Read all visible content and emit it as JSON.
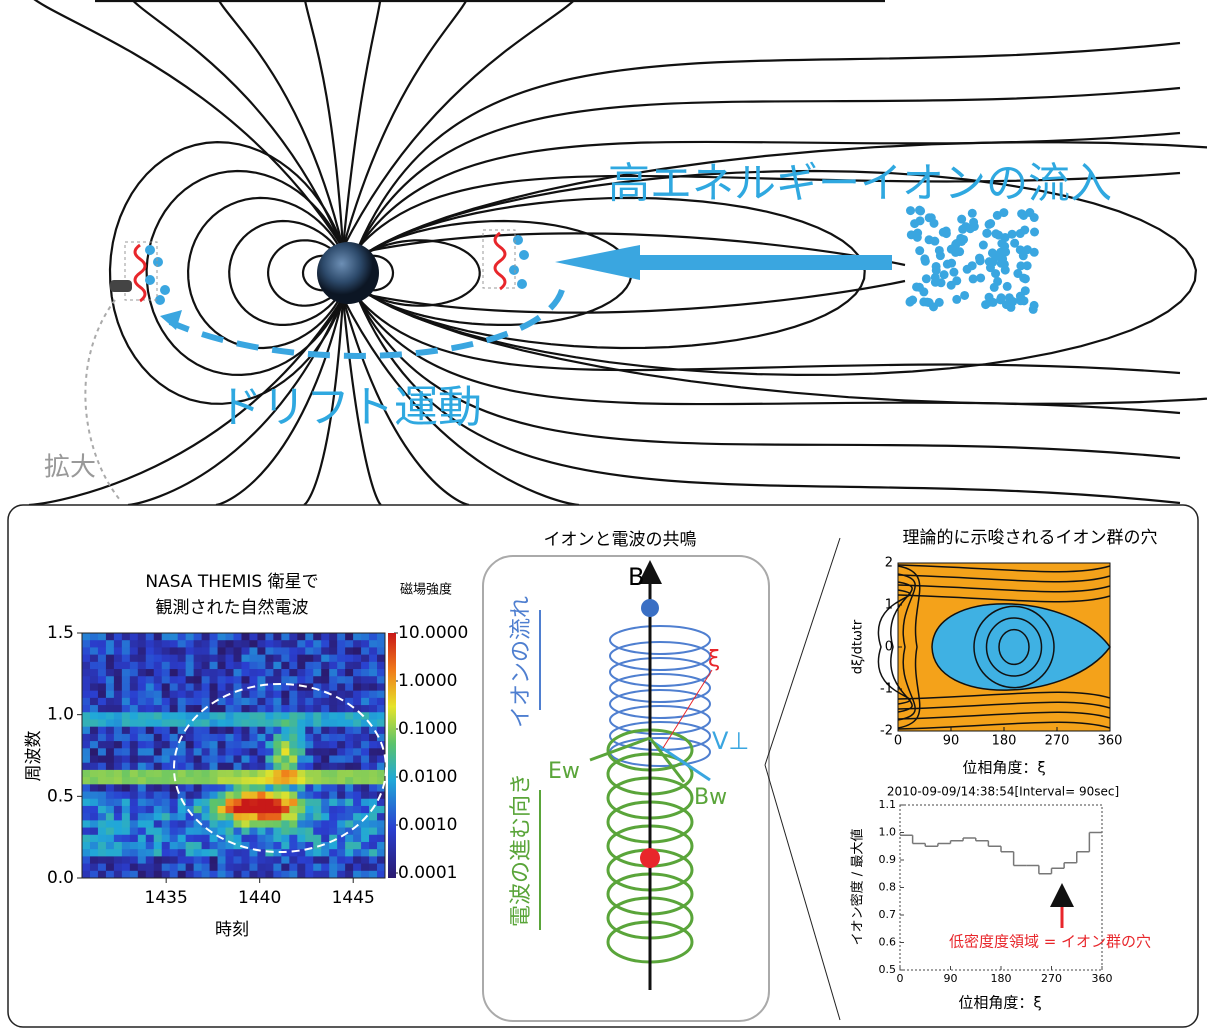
{
  "magnetosphere": {
    "inflow_label": "高エネルギーイオンの流入",
    "drift_label": "ドリフト運動",
    "zoom_label": "拡大"
  },
  "spectrogram": {
    "title_lines": [
      "NASA THEMIS 衛星で",
      "観測された自然電波"
    ],
    "x_label": "時刻",
    "y_label": "周波数",
    "xlim": [
      1430.5,
      1446.7
    ],
    "xticks": [
      1435,
      1440,
      1445
    ],
    "ylim": [
      0,
      1.5
    ],
    "yticks": [
      {
        "value": 0,
        "label": "0.0"
      },
      {
        "value": 0.5,
        "label": "0.5"
      },
      {
        "value": 1,
        "label": "1.0"
      },
      {
        "value": 1.5,
        "label": "1.5"
      }
    ],
    "colorbar_title": "磁場強度",
    "colorbar_log": true,
    "colorbar_lim": [
      0.0001,
      10
    ],
    "colorbar_ticks": [
      {
        "value": 10,
        "label": "10.0000"
      },
      {
        "value": 1,
        "label": "1.0000"
      },
      {
        "value": 0.1,
        "label": "0.1000"
      },
      {
        "value": 0.01,
        "label": "0.0100"
      },
      {
        "value": 0.001,
        "label": "0.0010"
      },
      {
        "value": 0.0001,
        "label": "0.0001"
      }
    ]
  },
  "resonance": {
    "title": "イオンと電波の共鳴",
    "b_label": "B",
    "ion_flow": "イオンの流れ",
    "wave_dir": "電波の進む向き",
    "xi": "ξ",
    "v_perp": "V⊥",
    "e_w": "Ew",
    "b_w": "Bw"
  },
  "phase_space": {
    "title": "理論的に示唆されるイオン群の穴",
    "x_label": "位相角度：ξ",
    "y_label": "dξ/dtωtr",
    "xlim": [
      0,
      360
    ],
    "xticks": [
      0,
      90,
      180,
      270,
      360
    ],
    "ylim": [
      -2,
      2
    ],
    "yticks": [
      -2,
      -1,
      0,
      1,
      2
    ]
  },
  "density": {
    "type": "step",
    "subtitle": "2010-09-09/14:38:54[Interval= 90sec]",
    "y_label": "イオン密度 / 最大値",
    "x_label": "位相角度：ξ",
    "annotation": "低密度度領域 = イオン群の穴",
    "annotation_color": "#e8262b",
    "color": "#777777",
    "xlim": [
      0,
      360
    ],
    "xticks": [
      0,
      90,
      180,
      270,
      360
    ],
    "ylim": [
      0.5,
      1.1
    ],
    "yticks": [
      0.5,
      0.6,
      0.7,
      0.8,
      0.9,
      {
        "value": 1,
        "label": "1.0"
      },
      1.1
    ],
    "bins": [
      0,
      22.5,
      45,
      67.5,
      90,
      112.5,
      135,
      157.5,
      180,
      202.5,
      225,
      247.5,
      270,
      292.5,
      315,
      337.5,
      360
    ],
    "values": [
      0.99,
      0.96,
      0.95,
      0.96,
      0.97,
      0.98,
      0.97,
      0.95,
      0.93,
      0.88,
      0.88,
      0.85,
      0.87,
      0.89,
      0.93,
      1.0
    ]
  }
}
